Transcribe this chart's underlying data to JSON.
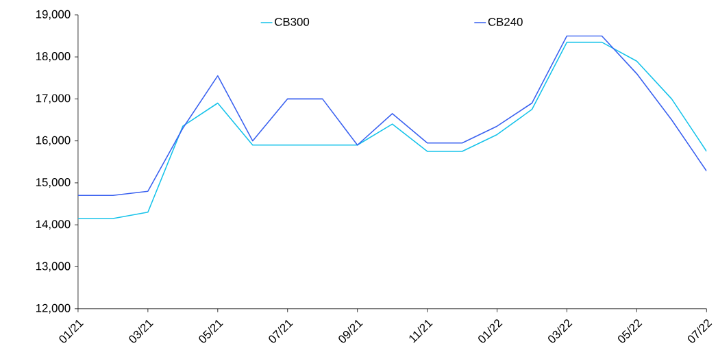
{
  "chart_data": {
    "type": "line",
    "categories": [
      "01/21",
      null,
      "03/21",
      null,
      "05/21",
      null,
      "07/21",
      null,
      "09/21",
      null,
      "11/21",
      null,
      "01/22",
      null,
      "03/22",
      null,
      "05/22",
      null,
      "07/22"
    ],
    "series": [
      {
        "name": "CB300",
        "color": "#17c3ea",
        "values": [
          14150,
          14150,
          14300,
          16350,
          16900,
          15900,
          15900,
          15900,
          15900,
          16400,
          15750,
          15750,
          16150,
          16750,
          18350,
          18350,
          17900,
          17000,
          15750
        ]
      },
      {
        "name": "CB240",
        "color": "#3b62f0",
        "values": [
          14700,
          14700,
          14800,
          16300,
          17550,
          16000,
          17000,
          17000,
          15900,
          16650,
          15950,
          15950,
          16350,
          16900,
          18500,
          18500,
          17600,
          16500,
          15280
        ]
      }
    ],
    "ylim": [
      12000,
      19000
    ],
    "yticks": [
      {
        "value": 12000,
        "label": "12,000"
      },
      {
        "value": 13000,
        "label": "13,000"
      },
      {
        "value": 14000,
        "label": "14,000"
      },
      {
        "value": 15000,
        "label": "15,000"
      },
      {
        "value": 16000,
        "label": "16,000"
      },
      {
        "value": 17000,
        "label": "17,000"
      },
      {
        "value": 18000,
        "label": "18,000"
      },
      {
        "value": 19000,
        "label": "19,000"
      }
    ],
    "grid": false,
    "legend": "top",
    "marker": "none",
    "line_style": "solid"
  }
}
